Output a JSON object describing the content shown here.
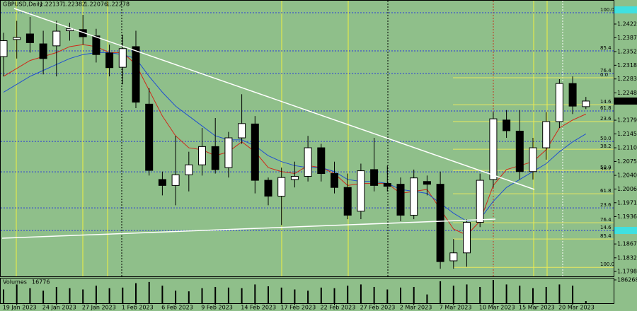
{
  "header": {
    "symbol": "GBPUSD,Daily"
  },
  "chart_data": {
    "type": "candlestick",
    "categories": [
      null,
      "19 Jan 2023",
      null,
      null,
      "24 Jan 2023",
      null,
      null,
      "27 Jan 2023",
      null,
      null,
      "1 Feb 2023",
      null,
      null,
      "6 Feb 2023",
      null,
      null,
      "9 Feb 2023",
      null,
      null,
      "14 Feb 2023",
      null,
      null,
      "17 Feb 2023",
      null,
      null,
      "22 Feb 2023",
      null,
      null,
      "27 Feb 2023",
      null,
      null,
      "2 Mar 2023",
      null,
      null,
      "7 Mar 2023",
      null,
      null,
      "10 Mar 2023",
      null,
      null,
      "15 Mar 2023",
      null,
      null,
      "20 Mar 2023",
      null
    ],
    "open": [
      1.234,
      1.2383,
      1.2397,
      1.2372,
      1.2367,
      1.2405,
      1.2408,
      1.2392,
      1.2349,
      1.2313,
      1.2365,
      1.222,
      1.203,
      1.2015,
      1.2042,
      1.2067,
      1.2113,
      1.206,
      1.2135,
      1.217,
      1.2028,
      1.1988,
      1.203,
      1.2038,
      1.211,
      1.2045,
      1.201,
      1.195,
      1.2055,
      1.202,
      1.2018,
      1.194,
      1.2025,
      1.2018,
      1.1825,
      1.1845,
      1.1922,
      1.203,
      1.218,
      1.2152,
      1.205,
      1.211,
      1.2176,
      1.2272,
      1.22137
    ],
    "high": [
      1.24,
      1.243,
      1.244,
      1.2405,
      1.243,
      1.2425,
      1.2445,
      1.241,
      1.237,
      1.2395,
      1.2405,
      1.226,
      1.205,
      1.214,
      1.21,
      1.216,
      1.2185,
      1.215,
      1.2245,
      1.219,
      1.2035,
      1.206,
      1.2075,
      1.214,
      1.212,
      1.2075,
      1.2045,
      1.207,
      1.2135,
      1.2065,
      1.2035,
      1.2055,
      1.204,
      1.205,
      1.188,
      1.193,
      1.2045,
      1.22,
      1.2205,
      1.2205,
      1.2135,
      1.22,
      1.2283,
      1.229,
      1.22382
    ],
    "low": [
      1.229,
      1.2335,
      1.235,
      1.2295,
      1.229,
      1.238,
      1.237,
      1.2325,
      1.229,
      1.227,
      1.221,
      1.204,
      1.199,
      1.1965,
      1.2,
      1.204,
      1.2045,
      1.2035,
      1.212,
      1.1995,
      1.1965,
      1.1915,
      1.201,
      1.2025,
      1.2025,
      1.1995,
      1.193,
      1.193,
      1.2,
      1.2,
      1.1925,
      1.193,
      1.199,
      1.1805,
      1.1805,
      1.181,
      1.191,
      1.201,
      1.2135,
      1.203,
      1.203,
      1.208,
      1.216,
      1.2195,
      1.22076
    ],
    "close": [
      1.238,
      1.2388,
      1.2375,
      1.2335,
      1.2404,
      1.241,
      1.239,
      1.2345,
      1.2312,
      1.236,
      1.2225,
      1.2053,
      1.2015,
      1.2042,
      1.2067,
      1.2113,
      1.2055,
      1.2135,
      1.2171,
      1.2028,
      1.1988,
      1.2035,
      1.2038,
      1.211,
      1.2045,
      1.201,
      1.194,
      1.2052,
      1.2015,
      1.2013,
      1.194,
      1.2034,
      1.2018,
      1.1823,
      1.1845,
      1.1922,
      1.2028,
      1.2183,
      1.2153,
      1.205,
      1.211,
      1.2176,
      1.2272,
      1.2215,
      1.22278
    ],
    "colors": {
      "up": "#ffffff",
      "down": "#000000"
    },
    "ylim": [
      1.1784,
      1.2479
    ],
    "yticks": [
      {
        "value": 1.2422,
        "label": "1.24220"
      },
      1.23875,
      1.23525,
      {
        "value": 1.2318,
        "label": "1.23180"
      },
      1.22835,
      1.22485,
      1.21795,
      {
        "value": 1.2145,
        "label": "1.21450"
      },
      {
        "value": 1.211,
        "label": "1.21100"
      },
      1.20755,
      1.20405,
      {
        "value": 1.2006,
        "label": "1.20060"
      },
      1.19715,
      1.19365,
      1.18675,
      1.18325,
      {
        "value": 1.1798,
        "label": "1.17980"
      }
    ],
    "moving_averages": [
      {
        "color": "#d02818",
        "values": [
          1.229,
          1.231,
          1.233,
          1.234,
          1.235,
          1.2365,
          1.237,
          1.2365,
          1.235,
          1.235,
          1.232,
          1.2255,
          1.219,
          1.214,
          1.211,
          1.2105,
          1.209,
          1.21,
          1.2125,
          1.21,
          1.206,
          1.205,
          1.2045,
          1.2065,
          1.206,
          1.2045,
          1.2015,
          1.202,
          1.202,
          1.202,
          1.1995,
          1.2,
          1.2005,
          1.1955,
          1.1905,
          1.189,
          1.1925,
          1.2015,
          1.2055,
          1.2065,
          1.2075,
          1.2105,
          1.216,
          1.218,
          1.2195
        ]
      },
      {
        "color": "#2050d0",
        "values": [
          1.225,
          1.227,
          1.229,
          1.2305,
          1.232,
          1.2335,
          1.2345,
          1.235,
          1.235,
          1.2345,
          1.2335,
          1.229,
          1.225,
          1.2215,
          1.219,
          1.2165,
          1.214,
          1.213,
          1.213,
          1.2115,
          1.209,
          1.2075,
          1.2065,
          1.206,
          1.206,
          1.205,
          1.203,
          1.2025,
          1.2025,
          1.202,
          1.2005,
          1.2,
          1.1995,
          1.197,
          1.1945,
          1.1925,
          1.193,
          1.1975,
          1.201,
          1.203,
          1.205,
          1.207,
          1.21,
          1.2125,
          1.2145
        ]
      }
    ],
    "fib_levels": [
      {
        "label": "100.0",
        "value": 1.24505,
        "color": "#2a3ad8"
      },
      {
        "label": "85.4",
        "value": 1.23542,
        "color": "#2a3ad8"
      },
      {
        "label": "76.4",
        "value": 1.22972,
        "color": "#2a3ad8"
      },
      {
        "label": "61.8",
        "value": 1.22027,
        "color": "#2a3ad8"
      },
      {
        "label": "50.0",
        "value": 1.2126,
        "color": "#2a3ad8"
      },
      {
        "label": "38.2",
        "value": 1.20494,
        "color": "#2a3ad8"
      },
      {
        "label": "23.6",
        "value": 1.19584,
        "color": "#2a3ad8"
      },
      {
        "label": "14.6",
        "value": 1.19014,
        "color": "#2a3ad8"
      },
      {
        "label": "0.0",
        "value": 1.22865,
        "color": "#e8e860"
      },
      {
        "label": "14.6",
        "value": 1.22187,
        "color": "#e8e860"
      },
      {
        "label": "23.6",
        "value": 1.2176,
        "color": "#e8e860"
      },
      {
        "label": "38.2",
        "value": 1.21064,
        "color": "#e8e860"
      },
      {
        "label": "50.0",
        "value": 1.20529,
        "color": "#e8e860"
      },
      {
        "label": "61.8",
        "value": 1.19941,
        "color": "#e8e860"
      },
      {
        "label": "76.4",
        "value": 1.1921,
        "color": "#e8e860"
      },
      {
        "label": "85.4",
        "value": 1.188,
        "color": "#e8e860"
      },
      {
        "label": "100.0",
        "value": 1.18086,
        "color": "#e8e860"
      }
    ],
    "volume": {
      "label": "Volumes",
      "color": "#000000",
      "ylim": [
        0,
        186268
      ],
      "yticks": [
        186268
      ],
      "values": [
        110000,
        150000,
        120000,
        100000,
        130000,
        120000,
        110000,
        140000,
        120000,
        125000,
        160000,
        170000,
        140000,
        100000,
        95000,
        120000,
        130000,
        125000,
        120000,
        150000,
        135000,
        125000,
        110000,
        100000,
        125000,
        120000,
        140000,
        150000,
        130000,
        110000,
        125000,
        130000,
        70000,
        175000,
        140000,
        150000,
        130000,
        186268,
        150000,
        140000,
        120000,
        130000,
        150000,
        140000,
        16776
      ]
    }
  }
}
